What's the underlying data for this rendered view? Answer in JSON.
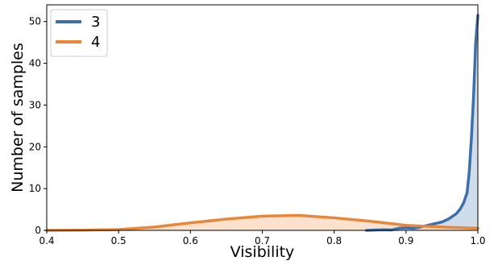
{
  "chart_data": {
    "type": "area",
    "title": "",
    "xlabel": "Visibility",
    "ylabel": "Number of samples",
    "xlim": [
      0.4,
      1.0
    ],
    "ylim": [
      0,
      54
    ],
    "xticks": [
      "0.4",
      "0.5",
      "0.6",
      "0.7",
      "0.8",
      "0.9",
      "1.0"
    ],
    "yticks": [
      "0",
      "10",
      "20",
      "30",
      "40",
      "50"
    ],
    "legend_position": "top-left",
    "grid": false,
    "series": [
      {
        "name": "3",
        "color": "#3d6fa8",
        "fill": "#c6d6e8",
        "x": [
          0.845,
          0.86,
          0.87,
          0.88,
          0.89,
          0.9,
          0.91,
          0.92,
          0.93,
          0.94,
          0.95,
          0.96,
          0.97,
          0.975,
          0.98,
          0.985,
          0.988,
          0.991,
          0.994,
          0.997,
          1.0
        ],
        "y": [
          0.0,
          0.1,
          0.15,
          0.1,
          0.5,
          0.6,
          0.5,
          0.8,
          1.2,
          1.6,
          2.0,
          2.8,
          4.0,
          5.0,
          6.5,
          9.0,
          14.0,
          22.0,
          32.0,
          45.0,
          51.5
        ]
      },
      {
        "name": "4",
        "color": "#e8873a",
        "fill": "#fbdcc4",
        "x": [
          0.4,
          0.45,
          0.5,
          0.55,
          0.6,
          0.65,
          0.7,
          0.75,
          0.8,
          0.85,
          0.9,
          0.95,
          1.0
        ],
        "y": [
          0.0,
          0.05,
          0.2,
          0.8,
          1.8,
          2.7,
          3.4,
          3.6,
          3.0,
          2.2,
          1.2,
          0.8,
          0.5
        ]
      }
    ]
  }
}
